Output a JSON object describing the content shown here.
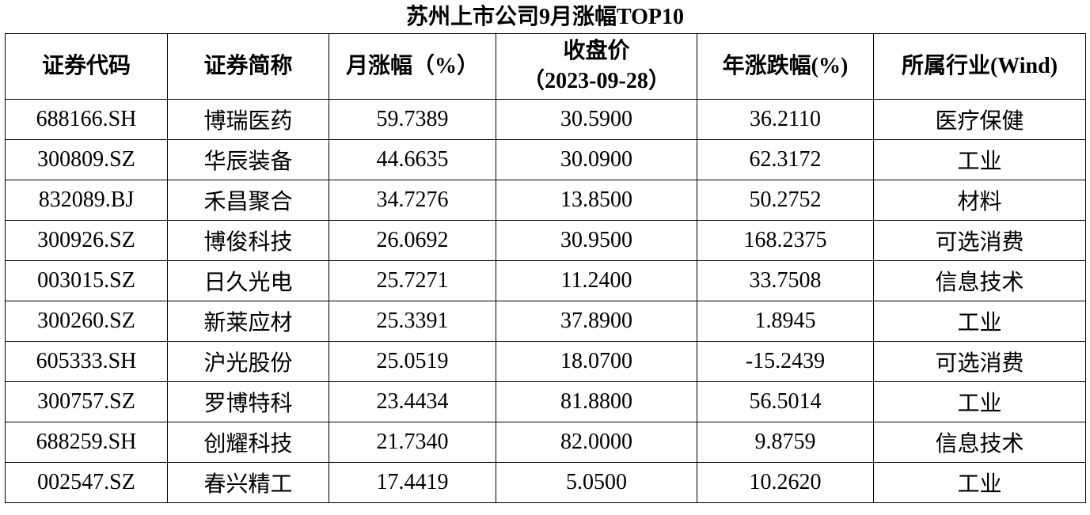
{
  "title": "苏州上市公司9月涨幅TOP10",
  "table": {
    "header": [
      "证券代码",
      "证券简称",
      "月涨幅（%）",
      [
        "收盘价",
        "（2023-09-28）"
      ],
      "年涨跌幅(%)",
      "所属行业(Wind)"
    ],
    "rows": [
      [
        "688166.SH",
        "博瑞医药",
        "59.7389",
        "30.5900",
        "36.2110",
        "医疗保健"
      ],
      [
        "300809.SZ",
        "华辰装备",
        "44.6635",
        "30.0900",
        "62.3172",
        "工业"
      ],
      [
        "832089.BJ",
        "禾昌聚合",
        "34.7276",
        "13.8500",
        "50.2752",
        "材料"
      ],
      [
        "300926.SZ",
        "博俊科技",
        "26.0692",
        "30.9500",
        "168.2375",
        "可选消费"
      ],
      [
        "003015.SZ",
        "日久光电",
        "25.7271",
        "11.2400",
        "33.7508",
        "信息技术"
      ],
      [
        "300260.SZ",
        "新莱应材",
        "25.3391",
        "37.8900",
        "1.8945",
        "工业"
      ],
      [
        "605333.SH",
        "沪光股份",
        "25.0519",
        "18.0700",
        "-15.2439",
        "可选消费"
      ],
      [
        "300757.SZ",
        "罗博特科",
        "23.4434",
        "81.8800",
        "56.5014",
        "工业"
      ],
      [
        "688259.SH",
        "创耀科技",
        "21.7340",
        "82.0000",
        "9.8759",
        "信息技术"
      ],
      [
        "002547.SZ",
        "春兴精工",
        "17.4419",
        "5.0500",
        "10.2620",
        "工业"
      ]
    ]
  }
}
